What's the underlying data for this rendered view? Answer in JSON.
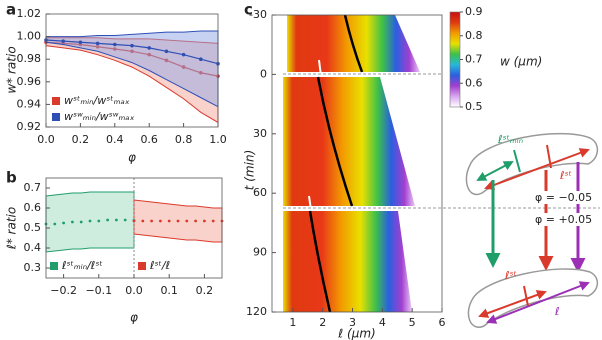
{
  "chart_data": [
    {
      "type": "line",
      "panel_label": "a",
      "ylabel": "w* ratio",
      "xlabel": "φ",
      "xlim": [
        0,
        1
      ],
      "ylim": [
        0.92,
        1.02
      ],
      "xticks": [
        {
          "value": 0,
          "label": "0.0"
        },
        0.2,
        0.4,
        0.6,
        0.8,
        {
          "value": 1,
          "label": "1.0"
        }
      ],
      "yticks": [
        0.92,
        0.94,
        0.96,
        0.98,
        {
          "value": 1,
          "label": "1.00"
        },
        1.02
      ],
      "legend": "lower left",
      "series": [
        {
          "name": "wˢᵗₘᵢₙ/wˢᵗₘₐₓ",
          "color": "#d93a2b",
          "band_color": "#f3a59a",
          "x": [
            0,
            0.1,
            0.2,
            0.3,
            0.4,
            0.5,
            0.6,
            0.7,
            0.8,
            0.9,
            1
          ],
          "values": [
            0.995,
            0.994,
            0.993,
            0.991,
            0.989,
            0.987,
            0.984,
            0.979,
            0.973,
            0.968,
            0.965
          ],
          "upper": [
            0.999,
            0.999,
            0.999,
            0.999,
            0.998,
            0.998,
            0.998,
            0.997,
            0.996,
            0.995,
            0.994
          ],
          "lower": [
            0.992,
            0.99,
            0.988,
            0.984,
            0.979,
            0.973,
            0.965,
            0.955,
            0.945,
            0.933,
            0.924
          ]
        },
        {
          "name": "wˢʷₘᵢₙ/wˢʷₘₐₓ",
          "color": "#2f4fb5",
          "band_color": "#8fa6e6",
          "x": [
            0,
            0.1,
            0.2,
            0.3,
            0.4,
            0.5,
            0.6,
            0.7,
            0.8,
            0.9,
            1
          ],
          "values": [
            0.997,
            0.996,
            0.995,
            0.994,
            0.993,
            0.992,
            0.99,
            0.987,
            0.984,
            0.98,
            0.976
          ],
          "upper": [
            1,
            1,
            1,
            1.001,
            1.001,
            1.002,
            1.003,
            1.004,
            1.004,
            1.005,
            1.005
          ],
          "lower": [
            0.995,
            0.993,
            0.99,
            0.987,
            0.982,
            0.977,
            0.97,
            0.962,
            0.954,
            0.946,
            0.938
          ]
        }
      ]
    },
    {
      "type": "scatter",
      "panel_label": "b",
      "ylabel": "ℓ* ratio",
      "xlabel": "φ",
      "xlim": [
        -0.25,
        0.25
      ],
      "ylim": [
        0.25,
        0.75
      ],
      "xticks": [
        {
          "value": -0.2,
          "label": "−0.2"
        },
        {
          "value": -0.1,
          "label": "−0.1"
        },
        {
          "value": 0,
          "label": "0.0"
        },
        0.1,
        0.2
      ],
      "yticks": [
        0.3,
        0.4,
        0.5,
        0.6,
        0.7
      ],
      "legend": "lower",
      "series": [
        {
          "name": "ℓˢᵗₘᵢₙ/ℓˢᵗ",
          "color": "#1f9e6a",
          "band_color": "#9fdcc0",
          "x": [
            -0.25,
            -0.225,
            -0.2,
            -0.175,
            -0.15,
            -0.125,
            -0.1,
            -0.075,
            -0.05,
            -0.025,
            0
          ],
          "values": [
            0.52,
            0.52,
            0.525,
            0.53,
            0.53,
            0.535,
            0.535,
            0.54,
            0.54,
            0.54,
            0.54
          ],
          "upper": [
            0.66,
            0.665,
            0.67,
            0.675,
            0.675,
            0.68,
            0.68,
            0.68,
            0.68,
            0.68,
            0.68
          ],
          "lower": [
            0.38,
            0.385,
            0.39,
            0.395,
            0.395,
            0.4,
            0.4,
            0.4,
            0.4,
            0.4,
            0.4
          ]
        },
        {
          "name": "ℓˢᵗ/ℓ",
          "color": "#d93a2b",
          "band_color": "#f3a59a",
          "x": [
            0,
            0.025,
            0.05,
            0.075,
            0.1,
            0.125,
            0.15,
            0.175,
            0.2,
            0.225,
            0.25
          ],
          "values": [
            0.535,
            0.535,
            0.535,
            0.535,
            0.535,
            0.535,
            0.535,
            0.535,
            0.535,
            0.535,
            0.535
          ],
          "upper": [
            0.64,
            0.635,
            0.63,
            0.625,
            0.62,
            0.615,
            0.61,
            0.61,
            0.605,
            0.6,
            0.6
          ],
          "lower": [
            0.47,
            0.465,
            0.46,
            0.455,
            0.45,
            0.445,
            0.44,
            0.44,
            0.435,
            0.43,
            0.43
          ]
        }
      ]
    },
    {
      "type": "heatmap",
      "panel_label": "c",
      "ylabel": "t (min)",
      "xlabel": "ℓ (μm)",
      "xlim": [
        0.3,
        6
      ],
      "ylim": [
        -30,
        120
      ],
      "y_inverted": true,
      "xticks": [
        1,
        2,
        3,
        4,
        5,
        6
      ],
      "yticks": [
        -30,
        0,
        30,
        60,
        90,
        120
      ],
      "colorbar": {
        "label": "w (μm)",
        "lim": [
          0.5,
          0.9
        ],
        "ticks": [
          0.5,
          0.6,
          0.7,
          0.8,
          0.9
        ],
        "colors": [
          "#ffffff",
          "#d9a6f0",
          "#a23fd0",
          "#2a5fe0",
          "#27b8d8",
          "#3cc04a",
          "#e8e000",
          "#f29a00",
          "#e03a10",
          "#c81010"
        ]
      }
    }
  ],
  "diagram": {
    "upper_labels": [
      "ℓˢᵗₘᵢₙ",
      "ℓˢᵗ"
    ],
    "phi_labels": [
      "φ = −0.05",
      "φ = +0.05"
    ],
    "lower_labels": [
      "ℓˢᵗ",
      "ℓ"
    ]
  }
}
